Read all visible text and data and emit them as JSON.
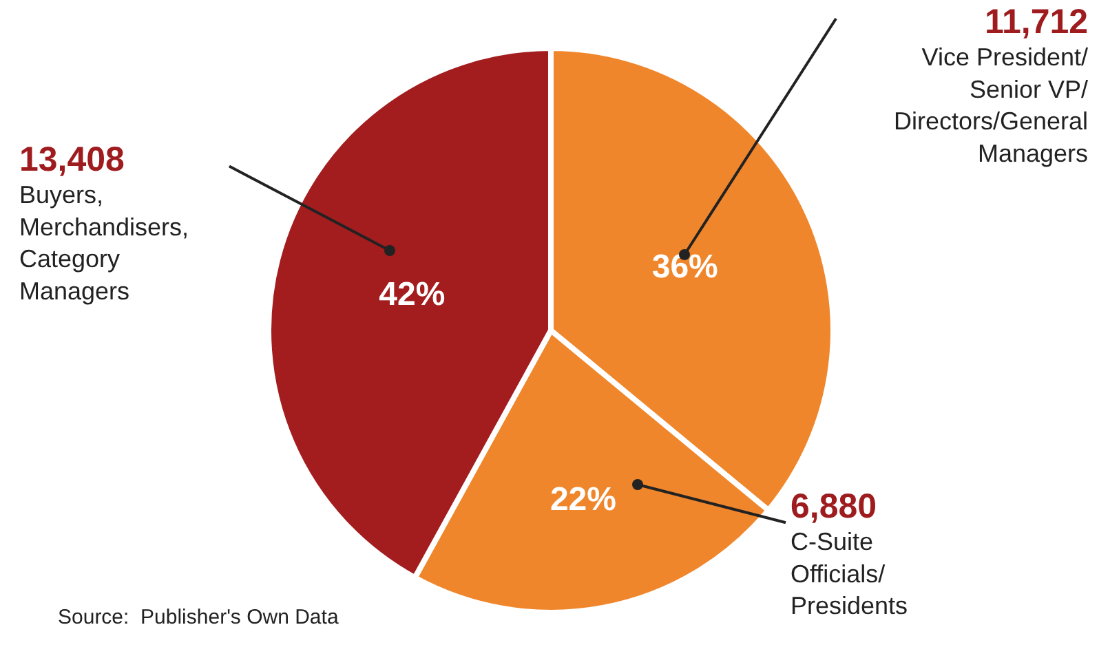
{
  "chart_data": {
    "type": "pie",
    "categories": [
      "Vice President/ Senior VP/ Directors/General Managers",
      "C-Suite Officials/ Presidents",
      "Buyers, Merchandisers, Category Managers"
    ],
    "values": [
      36,
      22,
      42
    ],
    "value_labels": [
      "36%",
      "22%",
      "42%"
    ],
    "colors": [
      "#f0862b",
      "#f0862b",
      "#a31d1f"
    ],
    "annotations": [
      "11,712",
      "6,880",
      "13,408",
      "Source:  Publisher's Own Data"
    ],
    "legend": false
  }
}
